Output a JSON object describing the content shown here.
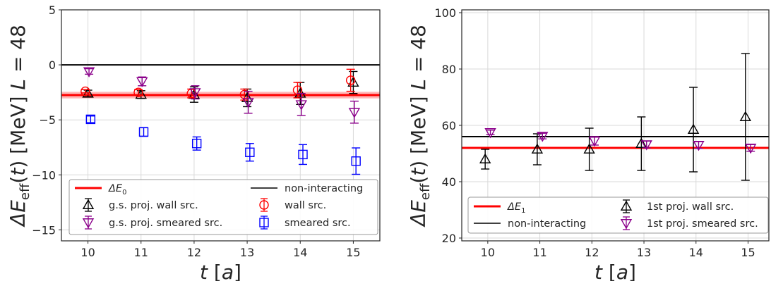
{
  "chart_data": [
    {
      "type": "scatter",
      "title": "",
      "xlabel": "t [a]",
      "ylabel": "ΔE_eff(t) [MeV] L = 48",
      "xlim": [
        9.5,
        15.5
      ],
      "ylim": [
        -16,
        5
      ],
      "xticks": [
        "10",
        "11",
        "12",
        "13",
        "14",
        "15"
      ],
      "yticks": [
        "5",
        "0",
        "−5",
        "−10",
        "−15"
      ],
      "ytick_values": [
        5,
        0,
        -5,
        -10,
        -15
      ],
      "grid": true,
      "legend": "lower center, 2 columns",
      "hlines": [
        {
          "name": "ΔE0",
          "label_main": "ΔE",
          "label_sub": "0",
          "y": -2.75,
          "band": [
            -3.05,
            -2.45
          ],
          "color": "#ff0000",
          "band_color": "#ff9a9a"
        },
        {
          "name": "non-interacting",
          "y": 0,
          "color": "#000000"
        }
      ],
      "series": [
        {
          "name": "g.s. proj. wall src.",
          "marker": "triangle-up",
          "color": "#000000",
          "x_offset": 0,
          "x": [
            10,
            11,
            12,
            13,
            14,
            15
          ],
          "y": [
            -2.6,
            -2.7,
            -2.7,
            -3.0,
            -2.6,
            -1.6
          ],
          "yerr": [
            0.3,
            0.35,
            0.7,
            0.8,
            1.0,
            1.0
          ]
        },
        {
          "name": "wall src.",
          "marker": "circle",
          "color": "#ff0000",
          "x_offset": -0.05,
          "x": [
            10,
            11,
            12,
            13,
            14,
            15
          ],
          "y": [
            -2.4,
            -2.5,
            -2.6,
            -2.7,
            -2.3,
            -1.4
          ],
          "yerr": [
            0.15,
            0.25,
            0.4,
            0.5,
            0.7,
            1.0
          ]
        },
        {
          "name": "g.s. proj. smeared src.",
          "marker": "triangle-down",
          "color": "#8b008b",
          "x_offset": 0.02,
          "x": [
            10,
            11,
            12,
            13,
            14,
            15
          ],
          "y": [
            -0.6,
            -1.5,
            -2.5,
            -3.4,
            -3.6,
            -4.3
          ],
          "yerr": [
            0.25,
            0.4,
            0.6,
            1.0,
            1.0,
            1.0
          ]
        },
        {
          "name": "smeared src.",
          "marker": "square",
          "color": "#0000ff",
          "x_offset": 0.05,
          "x": [
            10,
            11,
            12,
            13,
            14,
            15
          ],
          "y": [
            -4.95,
            -6.1,
            -7.15,
            -7.95,
            -8.15,
            -8.75
          ],
          "yerr": [
            0.3,
            0.4,
            0.6,
            0.8,
            0.9,
            1.2
          ]
        }
      ]
    },
    {
      "type": "scatter",
      "title": "",
      "xlabel": "t [a]",
      "ylabel": "ΔE_eff(t) [MeV] L = 48",
      "xlim": [
        9.5,
        15.4
      ],
      "ylim": [
        19,
        101
      ],
      "xticks": [
        "10",
        "11",
        "12",
        "13",
        "14",
        "15"
      ],
      "yticks": [
        "100",
        "80",
        "60",
        "40",
        "20"
      ],
      "ytick_values": [
        100,
        80,
        60,
        40,
        20
      ],
      "grid": true,
      "legend": "lower center, 2 columns",
      "hlines": [
        {
          "name": "ΔE1",
          "label_main": "ΔE",
          "label_sub": "1",
          "y": 52,
          "color": "#ff0000"
        },
        {
          "name": "non-interacting",
          "y": 56,
          "color": "#000000"
        }
      ],
      "series": [
        {
          "name": "1st proj. wall src.",
          "marker": "triangle-up",
          "color": "#000000",
          "x_offset": -0.05,
          "x": [
            10,
            11,
            12,
            13,
            14,
            15
          ],
          "y": [
            48,
            51.5,
            51.5,
            53.5,
            58.5,
            63
          ],
          "yerr": [
            3.5,
            5.5,
            7.5,
            9.5,
            15,
            22.5
          ]
        },
        {
          "name": "1st proj. smeared src.",
          "marker": "triangle-down",
          "color": "#8b008b",
          "x_offset": 0.05,
          "x": [
            10,
            11,
            12,
            13,
            14,
            15
          ],
          "y": [
            57.5,
            56.2,
            54.5,
            53.2,
            53,
            52
          ],
          "yerr": [
            0.8,
            1.0,
            1.5,
            1.2,
            1.2,
            1.2
          ]
        }
      ]
    }
  ]
}
